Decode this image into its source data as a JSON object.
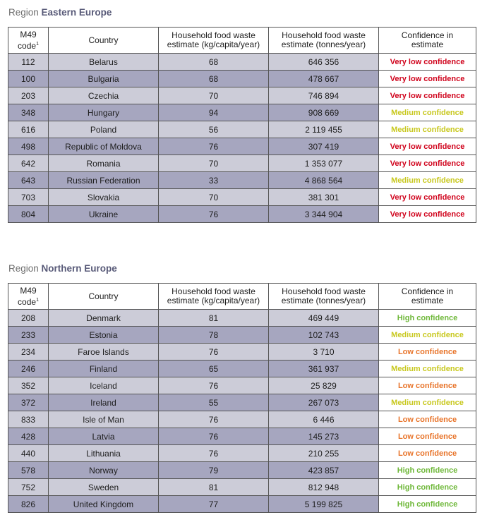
{
  "headers": {
    "m49": "M49",
    "code": "code",
    "footnote": "1",
    "country": "Country",
    "kg_1": "Household food waste",
    "kg_2": "estimate (kg/capita/year)",
    "tonnes_1": "Household food waste",
    "tonnes_2": "estimate (tonnes/year)",
    "conf_1": "Confidence in",
    "conf_2": "estimate"
  },
  "confidence_colors": {
    "Very low confidence": "#d0021b",
    "Low confidence": "#e8742a",
    "Medium confidence": "#c8c81e",
    "High confidence": "#6fb83a"
  },
  "regions": [
    {
      "prefix": "Region",
      "name": "Eastern Europe",
      "rows": [
        {
          "code": "112",
          "country": "Belarus",
          "kg": "68",
          "tonnes": "646 356",
          "confidence": "Very low confidence"
        },
        {
          "code": "100",
          "country": "Bulgaria",
          "kg": "68",
          "tonnes": "478 667",
          "confidence": "Very low confidence"
        },
        {
          "code": "203",
          "country": "Czechia",
          "kg": "70",
          "tonnes": "746 894",
          "confidence": "Very low confidence"
        },
        {
          "code": "348",
          "country": "Hungary",
          "kg": "94",
          "tonnes": "908 669",
          "confidence": "Medium confidence"
        },
        {
          "code": "616",
          "country": "Poland",
          "kg": "56",
          "tonnes": "2 119 455",
          "confidence": "Medium confidence"
        },
        {
          "code": "498",
          "country": "Republic of Moldova",
          "kg": "76",
          "tonnes": "307 419",
          "confidence": "Very low confidence"
        },
        {
          "code": "642",
          "country": "Romania",
          "kg": "70",
          "tonnes": "1 353 077",
          "confidence": "Very low confidence"
        },
        {
          "code": "643",
          "country": "Russian Federation",
          "kg": "33",
          "tonnes": "4 868 564",
          "confidence": "Medium confidence"
        },
        {
          "code": "703",
          "country": "Slovakia",
          "kg": "70",
          "tonnes": "381 301",
          "confidence": "Very low confidence"
        },
        {
          "code": "804",
          "country": "Ukraine",
          "kg": "76",
          "tonnes": "3 344 904",
          "confidence": "Very low confidence"
        }
      ]
    },
    {
      "prefix": "Region",
      "name": "Northern Europe",
      "rows": [
        {
          "code": "208",
          "country": "Denmark",
          "kg": "81",
          "tonnes": "469 449",
          "confidence": "High confidence"
        },
        {
          "code": "233",
          "country": "Estonia",
          "kg": "78",
          "tonnes": "102 743",
          "confidence": "Medium confidence"
        },
        {
          "code": "234",
          "country": "Faroe Islands",
          "kg": "76",
          "tonnes": "3 710",
          "confidence": "Low confidence"
        },
        {
          "code": "246",
          "country": "Finland",
          "kg": "65",
          "tonnes": "361 937",
          "confidence": "Medium confidence"
        },
        {
          "code": "352",
          "country": "Iceland",
          "kg": "76",
          "tonnes": "25 829",
          "confidence": "Low confidence"
        },
        {
          "code": "372",
          "country": "Ireland",
          "kg": "55",
          "tonnes": "267 073",
          "confidence": "Medium confidence"
        },
        {
          "code": "833",
          "country": "Isle of Man",
          "kg": "76",
          "tonnes": "6 446",
          "confidence": "Low confidence"
        },
        {
          "code": "428",
          "country": "Latvia",
          "kg": "76",
          "tonnes": "145 273",
          "confidence": "Low confidence"
        },
        {
          "code": "440",
          "country": "Lithuania",
          "kg": "76",
          "tonnes": "210 255",
          "confidence": "Low confidence"
        },
        {
          "code": "578",
          "country": "Norway",
          "kg": "79",
          "tonnes": "423 857",
          "confidence": "High confidence"
        },
        {
          "code": "752",
          "country": "Sweden",
          "kg": "81",
          "tonnes": "812 948",
          "confidence": "High confidence"
        },
        {
          "code": "826",
          "country": "United Kingdom",
          "kg": "77",
          "tonnes": "5 199 825",
          "confidence": "High confidence"
        }
      ]
    }
  ]
}
